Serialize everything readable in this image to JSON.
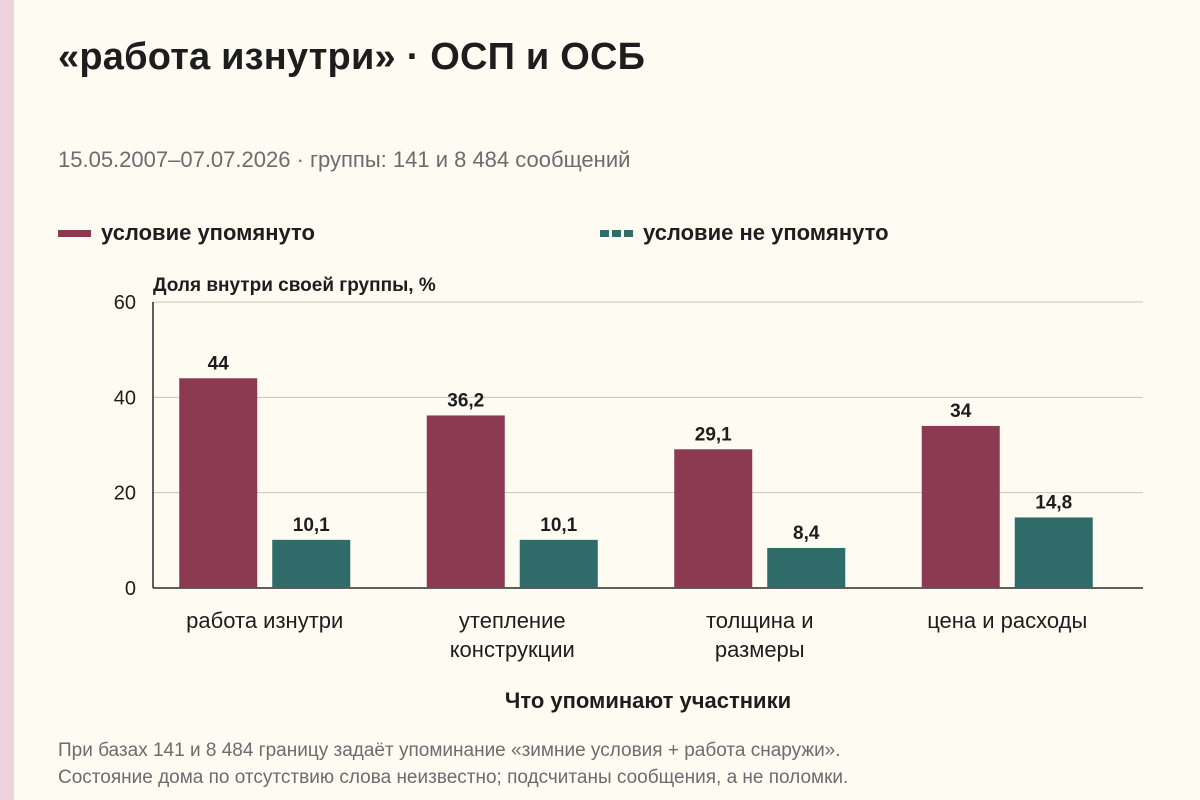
{
  "title": "«работа изнутри» · ОСП и ОСБ",
  "subtitle": "15.05.2007–07.07.2026 · группы: 141 и 8 484 сообщений",
  "colors": {
    "series_a": "#8b3a52",
    "series_b": "#2f6b68",
    "grid": "#c8c5bd",
    "axis": "#2b2b2b",
    "accent_bar": "#ecd3dc"
  },
  "footnote": {
    "line1": "При базах 141 и 8 484 границу задаёт упоминание «зимние условия + работа снаружи».",
    "line2": "Состояние дома по отсутствию слова неизвестно; подсчитаны сообщения, а не поломки."
  },
  "chart_data": {
    "type": "bar",
    "categories": [
      [
        "работа изнутри"
      ],
      [
        "утепление",
        "конструкции"
      ],
      [
        "толщина и",
        "размеры"
      ],
      [
        "цена и расходы"
      ]
    ],
    "series": [
      {
        "name": "условие упомянуто",
        "values": [
          44,
          36.2,
          29.1,
          34
        ],
        "labels": [
          "44",
          "36,2",
          "29,1",
          "34"
        ],
        "color": "#8b3a52",
        "legend_style": "solid"
      },
      {
        "name": "условие не упомянуто",
        "values": [
          10.1,
          10.1,
          8.4,
          14.8
        ],
        "labels": [
          "10,1",
          "10,1",
          "8,4",
          "14,8"
        ],
        "color": "#2f6b68",
        "legend_style": "dashed"
      }
    ],
    "ylabel": "Доля внутри своей группы, %",
    "xlabel": "Что упоминают участники",
    "ylim": [
      0,
      60
    ],
    "yticks": [
      0,
      20,
      40,
      60
    ],
    "grid": true,
    "legend_position": "top"
  }
}
